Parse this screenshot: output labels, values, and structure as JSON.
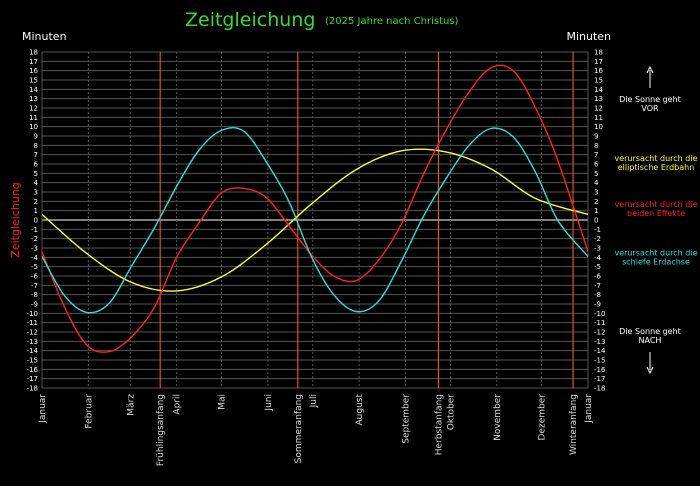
{
  "chart_data": {
    "type": "line",
    "title": "Zeitgleichung",
    "subtitle": "(2025 Jahre nach Christus)",
    "ylabel": "Zeitgleichung",
    "yunit_left": "Minuten",
    "yunit_right": "Minuten",
    "ylim": [
      -18,
      18
    ],
    "yticks": [
      18,
      17,
      16,
      15,
      14,
      13,
      12,
      11,
      10,
      9,
      8,
      7,
      6,
      5,
      4,
      3,
      2,
      1,
      0,
      -1,
      -2,
      -3,
      -4,
      -5,
      -6,
      -7,
      -8,
      -9,
      -10,
      -11,
      -12,
      -13,
      -14,
      -15,
      -16,
      -17,
      -18
    ],
    "grid": true,
    "x_unit": "day of year",
    "xlim": [
      0,
      365
    ],
    "months": [
      {
        "label": "Januar",
        "day": 0
      },
      {
        "label": "Februar",
        "day": 31
      },
      {
        "label": "März",
        "day": 59
      },
      {
        "label": "April",
        "day": 90
      },
      {
        "label": "Mai",
        "day": 120
      },
      {
        "label": "Juni",
        "day": 151
      },
      {
        "label": "Juli",
        "day": 181
      },
      {
        "label": "August",
        "day": 212
      },
      {
        "label": "September",
        "day": 243
      },
      {
        "label": "Oktober",
        "day": 273
      },
      {
        "label": "November",
        "day": 304
      },
      {
        "label": "Dezember",
        "day": 334
      },
      {
        "label": "Januar",
        "day": 365
      }
    ],
    "seasons": [
      {
        "label": "Frühlingsanfang",
        "day": 79
      },
      {
        "label": "Sommeranfang",
        "day": 171
      },
      {
        "label": "Herbstanfang",
        "day": 265
      },
      {
        "label": "Winteranfang",
        "day": 355
      }
    ],
    "series": [
      {
        "name": "verursacht durch die elliptische Erdbahn",
        "color": "#ffff33",
        "x": [
          0,
          30,
          60,
          90,
          120,
          150,
          180,
          210,
          240,
          270,
          300,
          330,
          365
        ],
        "values": [
          0.6,
          -3.6,
          -6.7,
          -7.6,
          -6.1,
          -2.6,
          1.7,
          5.4,
          7.4,
          7.3,
          5.5,
          2.3,
          0.6
        ]
      },
      {
        "name": "verursacht durch die beiden Effekte",
        "color": "#ff2020",
        "x": [
          0,
          15,
          30,
          45,
          60,
          75,
          90,
          105,
          120,
          135,
          150,
          165,
          180,
          195,
          210,
          225,
          240,
          255,
          270,
          285,
          300,
          315,
          330,
          345,
          365
        ],
        "values": [
          -3.4,
          -9.3,
          -13.4,
          -14.1,
          -12.5,
          -9.4,
          -4.0,
          -0.3,
          2.9,
          3.4,
          2.4,
          -0.6,
          -3.7,
          -6.0,
          -6.5,
          -4.3,
          -0.5,
          4.9,
          9.6,
          13.6,
          16.3,
          16.0,
          12.0,
          6.3,
          -3.4
        ]
      },
      {
        "name": "verursacht durch die schiefe Erdachse",
        "color": "#33dddd",
        "x": [
          0,
          15,
          30,
          45,
          60,
          75,
          90,
          105,
          120,
          135,
          150,
          165,
          180,
          195,
          210,
          225,
          240,
          255,
          270,
          285,
          300,
          315,
          330,
          345,
          365
        ],
        "values": [
          -3.9,
          -8.1,
          -9.9,
          -8.9,
          -4.9,
          -0.9,
          3.6,
          7.5,
          9.6,
          9.5,
          6.2,
          2.0,
          -3.9,
          -8.0,
          -9.8,
          -8.7,
          -4.5,
          0.4,
          4.4,
          7.9,
          9.8,
          8.9,
          5.1,
          -0.1,
          -3.9
        ]
      }
    ],
    "annotations": {
      "top_right_line1": "Die Sonne geht",
      "top_right_line2": "VOR",
      "bottom_right_line1": "Die Sonne geht",
      "bottom_right_line2": "NACH"
    },
    "legend_placement": "right"
  }
}
